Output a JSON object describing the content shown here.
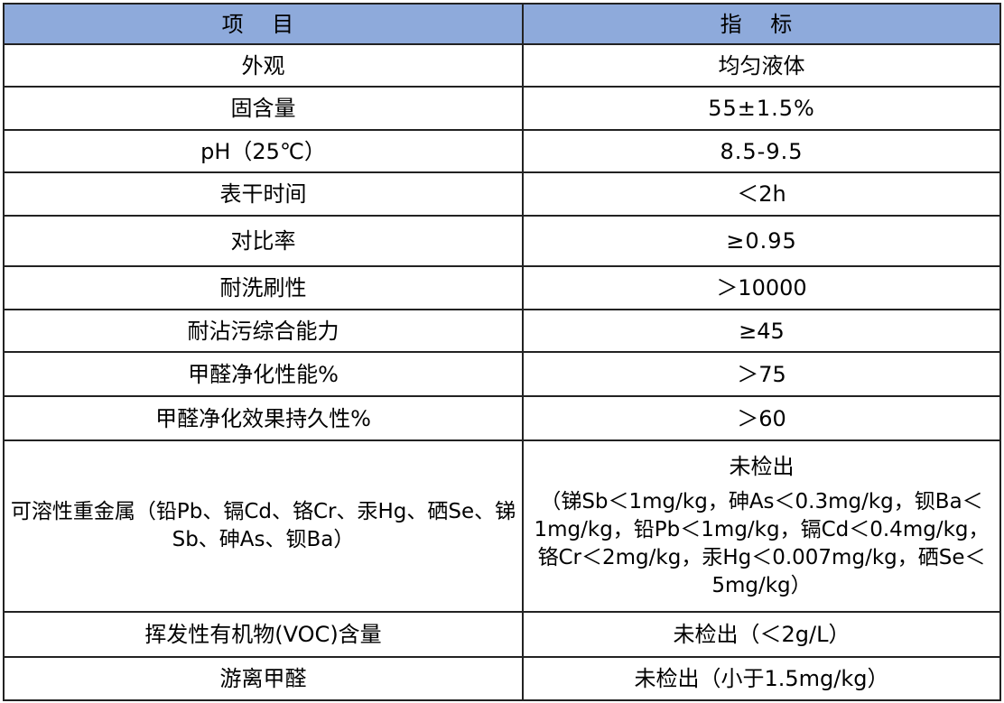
{
  "table": {
    "headers": [
      "项 目",
      "指 标"
    ],
    "rows": [
      {
        "item": "外观",
        "value": "均匀液体"
      },
      {
        "item": "固含量",
        "value": "55±1.5%"
      },
      {
        "item": "pH（25℃）",
        "value": "8.5-9.5"
      },
      {
        "item": "表干时间",
        "value": "＜2h"
      },
      {
        "item": "对比率",
        "value": "≥0.95"
      },
      {
        "item": "耐洗刷性",
        "value": "＞10000"
      },
      {
        "item": "耐沾污综合能力",
        "value": "≥45"
      },
      {
        "item": "甲醛净化性能%",
        "value": "＞75"
      },
      {
        "item": "甲醛净化效果持久性%",
        "value": "＞60"
      },
      {
        "item": "可溶性重金属（铅Pb、镉Cd、铬Cr、汞Hg、硒Se、锑Sb、砷As、钡Ba）",
        "value": "未检出",
        "value_detail": "（锑Sb＜1mg/kg，砷As＜0.3mg/kg，钡Ba＜1mg/kg，铅Pb＜1mg/kg，镉Cd＜0.4mg/kg，铬Cr＜2mg/kg，汞Hg＜0.007mg/kg，硒Se＜5mg/kg）"
      },
      {
        "item": "挥发性有机物(VOC)含量",
        "value": "未检出（＜2g/L）"
      },
      {
        "item": "游离甲醛",
        "value": "未检出（小于1.5mg/kg）"
      }
    ]
  },
  "colors": {
    "header_bg": "#8eaadb",
    "border": "#222222"
  }
}
